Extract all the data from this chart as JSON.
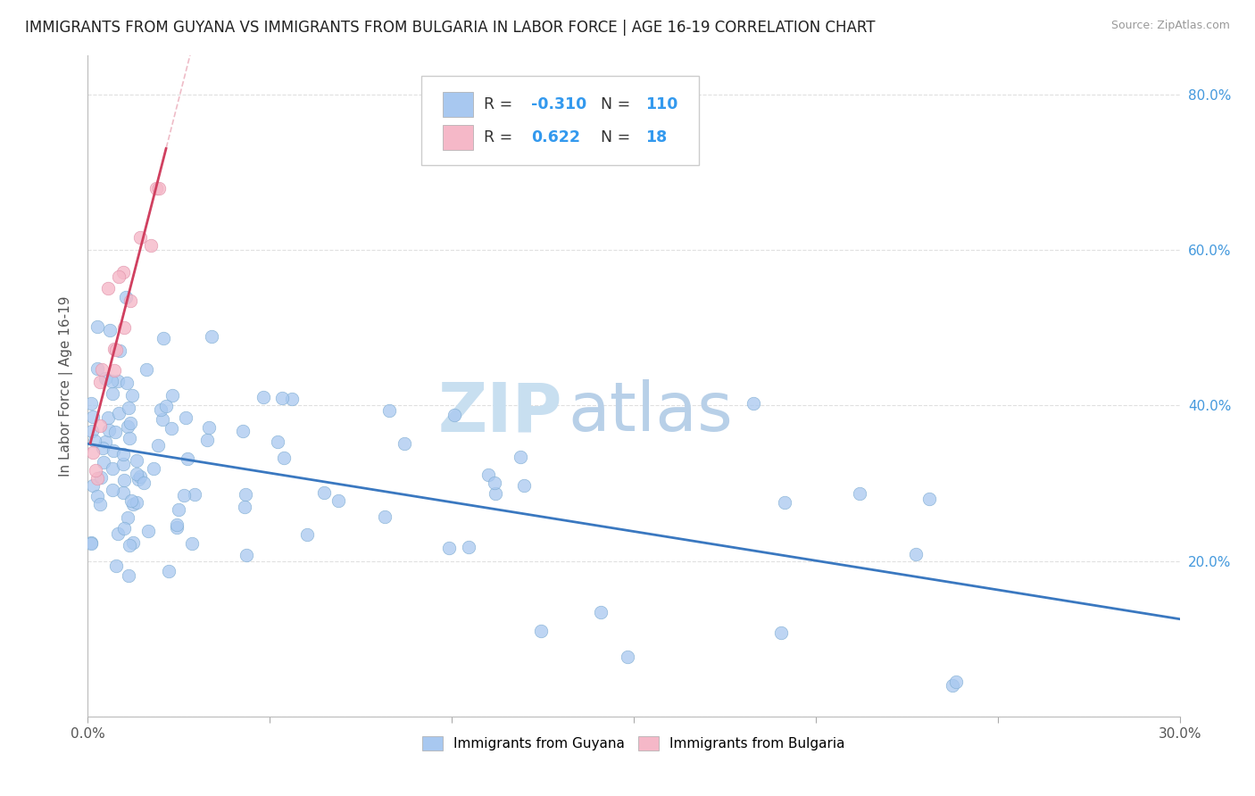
{
  "title": "IMMIGRANTS FROM GUYANA VS IMMIGRANTS FROM BULGARIA IN LABOR FORCE | AGE 16-19 CORRELATION CHART",
  "source": "Source: ZipAtlas.com",
  "ylabel": "In Labor Force | Age 16-19",
  "xlim": [
    0.0,
    0.3
  ],
  "ylim": [
    0.0,
    0.85
  ],
  "xticks": [
    0.0,
    0.05,
    0.1,
    0.15,
    0.2,
    0.25,
    0.3
  ],
  "xticklabels": [
    "0.0%",
    "",
    "",
    "",
    "",
    "",
    "30.0%"
  ],
  "yticks": [
    0.0,
    0.2,
    0.4,
    0.6,
    0.8
  ],
  "guyana_color": "#a8c8f0",
  "guyana_edge_color": "#7aaad0",
  "bulgaria_color": "#f5b8c8",
  "bulgaria_edge_color": "#e090a8",
  "guyana_line_color": "#3a78c0",
  "bulgaria_line_color": "#d04060",
  "bulgaria_dashed_color": "#e8a0b0",
  "watermark_zip_color": "#c8dff0",
  "watermark_atlas_color": "#b8d0e8",
  "R_guyana": -0.31,
  "N_guyana": 110,
  "R_bulgaria": 0.622,
  "N_bulgaria": 18,
  "background_color": "#ffffff",
  "grid_color": "#e0e0e0",
  "title_fontsize": 12,
  "label_fontsize": 11,
  "tick_fontsize": 11,
  "right_ytick_color": "#4499dd",
  "legend_label_color": "#333333",
  "legend_value_color": "#3399ee"
}
